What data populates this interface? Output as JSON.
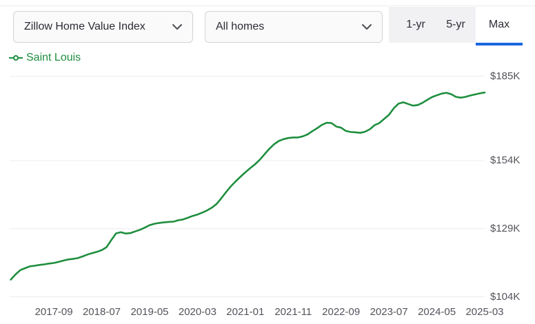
{
  "header": {
    "metric_select": {
      "value": "Zillow Home Value Index"
    },
    "segment_select": {
      "value": "All homes"
    },
    "tabs": [
      {
        "label": "1-yr",
        "active": false
      },
      {
        "label": "5-yr",
        "active": false
      },
      {
        "label": "Max",
        "active": true
      }
    ]
  },
  "legend": {
    "series_label": "Saint Louis"
  },
  "colors": {
    "green": "#1e8e3e",
    "accent_blue": "#1866e0",
    "grid": "#ececf0",
    "axis_text": "#53535b",
    "control_border": "#d3d3d8",
    "control_bg": "#fafafb",
    "tabstrip_bg": "#f1f1f4",
    "text_dark": "#2b2b33"
  },
  "chart_data": {
    "type": "line",
    "title": "",
    "legend_position": "top-left",
    "grid": "horizontal",
    "y_axis_side": "right",
    "units": "USD thousands",
    "interval": "monthly",
    "x_start": "2016-12",
    "x_end": "2025-03",
    "categories": [
      "2017-09",
      "2018-07",
      "2019-05",
      "2020-03",
      "2021-01",
      "2021-11",
      "2022-09",
      "2023-07",
      "2024-05",
      "2025-03"
    ],
    "first_tick_index": 9,
    "tick_step": 10,
    "y_ticks": [
      {
        "label": "$185K",
        "value": 185
      },
      {
        "label": "$154K",
        "value": 154
      },
      {
        "label": "$129K",
        "value": 129
      },
      {
        "label": "$104K",
        "value": 104
      }
    ],
    "ylim": [
      100,
      190
    ],
    "series": [
      {
        "name": "Saint Louis",
        "values": [
          110.3,
          112.2,
          113.8,
          114.5,
          115.2,
          115.4,
          115.7,
          115.9,
          116.2,
          116.4,
          116.8,
          117.3,
          117.7,
          117.9,
          118.2,
          118.8,
          119.5,
          120.0,
          120.5,
          121.1,
          122.2,
          124.8,
          127.3,
          127.7,
          127.2,
          127.4,
          128.0,
          128.6,
          129.4,
          130.3,
          130.8,
          131.1,
          131.3,
          131.5,
          131.6,
          132.1,
          132.4,
          133.0,
          133.7,
          134.2,
          134.9,
          135.7,
          136.7,
          138.1,
          140.2,
          142.5,
          144.6,
          146.4,
          148.1,
          149.7,
          151.2,
          152.6,
          154.3,
          156.3,
          158.3,
          160.0,
          161.2,
          161.9,
          162.3,
          162.5,
          162.5,
          162.9,
          163.6,
          164.8,
          165.9,
          167.1,
          167.9,
          167.8,
          166.5,
          166.1,
          164.9,
          164.5,
          164.4,
          164.2,
          164.6,
          165.5,
          167.0,
          167.8,
          169.3,
          170.8,
          173.2,
          174.9,
          175.4,
          174.8,
          174.2,
          174.4,
          175.2,
          176.3,
          177.3,
          178.0,
          178.6,
          178.9,
          178.4,
          177.4,
          177.1,
          177.4,
          177.9,
          178.3,
          178.7,
          179.0
        ]
      }
    ]
  }
}
